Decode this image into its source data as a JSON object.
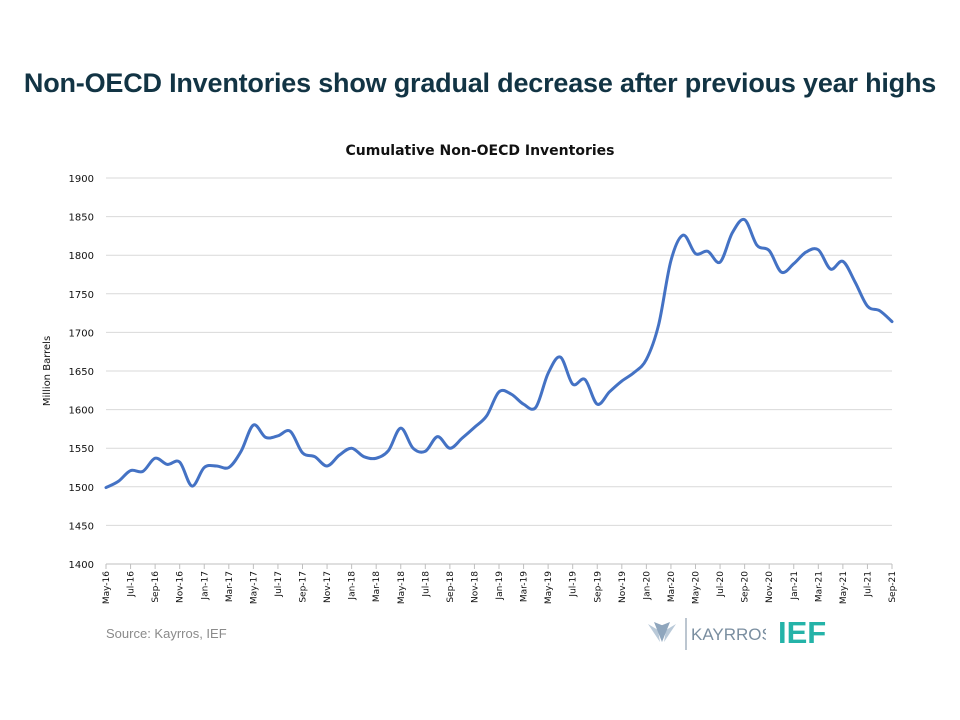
{
  "slide": {
    "title": "Non-OECD Inventories show gradual decrease after previous year highs",
    "source": "Source: Kayrros, IEF",
    "logos": [
      {
        "name": "Kayrros",
        "text": "KAYRROS",
        "color": "#7a8ea0"
      },
      {
        "name": "IEF",
        "text": "IEF",
        "color": "#24b3a8"
      }
    ]
  },
  "colors": {
    "series": "#4472c4",
    "grid": "#d9d9d9",
    "axis_text": "#111111",
    "title": "#123444"
  },
  "chart_data": {
    "type": "line",
    "title": "Cumulative Non-OECD Inventories",
    "xlabel": "",
    "ylabel": "Million Barrels",
    "ylim": [
      1400,
      1900
    ],
    "yticks": [
      1400,
      1450,
      1500,
      1550,
      1600,
      1650,
      1700,
      1750,
      1800,
      1850,
      1900
    ],
    "grid": true,
    "legend": "none",
    "x_tick_labels": [
      "May-16",
      "Jul-16",
      "Sep-16",
      "Nov-16",
      "Jan-17",
      "Mar-17",
      "May-17",
      "Jul-17",
      "Sep-17",
      "Nov-17",
      "Jan-18",
      "Mar-18",
      "May-18",
      "Jul-18",
      "Sep-18",
      "Nov-18",
      "Jan-19",
      "Mar-19",
      "May-19",
      "Jul-19",
      "Sep-19",
      "Nov-19",
      "Jan-20",
      "Mar-20",
      "May-20",
      "Jul-20",
      "Sep-20",
      "Nov-20",
      "Jan-21",
      "Mar-21",
      "May-21",
      "Jul-21",
      "Sep-21"
    ],
    "series": [
      {
        "name": "",
        "x": [
          "May-16",
          "Jun-16",
          "Jul-16",
          "Aug-16",
          "Sep-16",
          "Oct-16",
          "Nov-16",
          "Dec-16",
          "Jan-17",
          "Feb-17",
          "Mar-17",
          "Apr-17",
          "May-17",
          "Jun-17",
          "Jul-17",
          "Aug-17",
          "Sep-17",
          "Oct-17",
          "Nov-17",
          "Dec-17",
          "Jan-18",
          "Feb-18",
          "Mar-18",
          "Apr-18",
          "May-18",
          "Jun-18",
          "Jul-18",
          "Aug-18",
          "Sep-18",
          "Oct-18",
          "Nov-18",
          "Dec-18",
          "Jan-19",
          "Feb-19",
          "Mar-19",
          "Apr-19",
          "May-19",
          "Jun-19",
          "Jul-19",
          "Aug-19",
          "Sep-19",
          "Oct-19",
          "Nov-19",
          "Dec-19",
          "Jan-20",
          "Feb-20",
          "Mar-20",
          "Apr-20",
          "May-20",
          "Jun-20",
          "Jul-20",
          "Aug-20",
          "Sep-20",
          "Oct-20",
          "Nov-20",
          "Dec-20",
          "Jan-21",
          "Feb-21",
          "Mar-21",
          "Apr-21",
          "May-21",
          "Jun-21",
          "Jul-21",
          "Aug-21",
          "Sep-21"
        ],
        "values": [
          1499,
          1507,
          1521,
          1520,
          1537,
          1529,
          1532,
          1501,
          1525,
          1527,
          1525,
          1546,
          1580,
          1564,
          1566,
          1572,
          1544,
          1539,
          1527,
          1541,
          1550,
          1539,
          1537,
          1547,
          1576,
          1550,
          1546,
          1565,
          1550,
          1563,
          1577,
          1592,
          1623,
          1620,
          1607,
          1603,
          1647,
          1668,
          1633,
          1639,
          1607,
          1623,
          1637,
          1648,
          1665,
          1710,
          1793,
          1826,
          1802,
          1805,
          1791,
          1829,
          1846,
          1813,
          1806,
          1778,
          1789,
          1804,
          1807,
          1782,
          1792,
          1765,
          1734,
          1728,
          1714
        ]
      }
    ]
  }
}
